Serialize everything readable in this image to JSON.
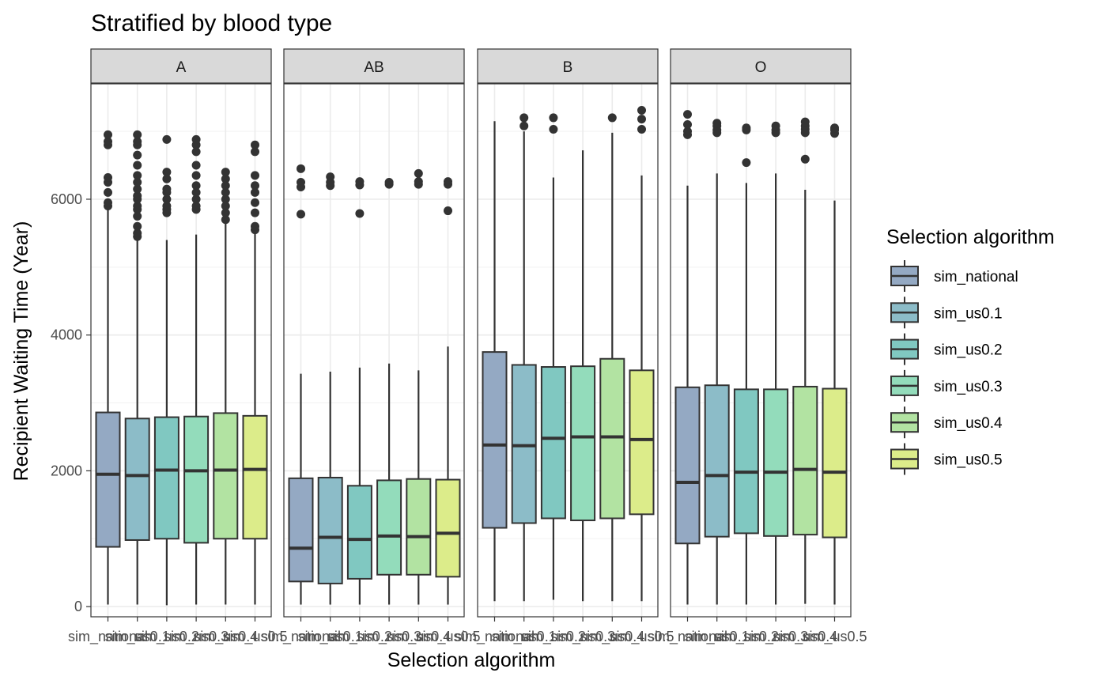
{
  "chart_data": {
    "type": "boxplot",
    "title": "Stratified by blood type",
    "xlabel": "Selection algorithm",
    "ylabel": "Recipient Waiting Time (Year)",
    "y_ticks": [
      0,
      2000,
      4000,
      6000
    ],
    "ylim": [
      -150,
      7700
    ],
    "grid": true,
    "legend_position": "right",
    "legend_title": "Selection algorithm",
    "categories": [
      "sim_national",
      "sim_us0.1",
      "sim_us0.2",
      "sim_us0.3",
      "sim_us0.4",
      "sim_us0.5"
    ],
    "colors": [
      "#94a9c3",
      "#8cbcc8",
      "#80c8c1",
      "#93dcbb",
      "#b2e3a2",
      "#dcec8a"
    ],
    "facets": [
      {
        "label": "A",
        "boxes": [
          {
            "lw": 30,
            "q1": 880,
            "median": 1950,
            "q3": 2860,
            "uw": 5850,
            "outliers": [
              5900,
              5950,
              6100,
              6250,
              6320,
              6800,
              6850,
              6950
            ]
          },
          {
            "lw": 30,
            "q1": 980,
            "median": 1930,
            "q3": 2770,
            "uw": 5400,
            "outliers": [
              5450,
              5500,
              5600,
              5750,
              5850,
              5900,
              6000,
              6050,
              6150,
              6250,
              6350,
              6500,
              6650,
              6800,
              6850,
              6950
            ]
          },
          {
            "lw": 20,
            "q1": 1000,
            "median": 2010,
            "q3": 2790,
            "uw": 5400,
            "outliers": [
              5800,
              5850,
              5900,
              6000,
              6100,
              6150,
              6300,
              6400,
              6880
            ]
          },
          {
            "lw": 30,
            "q1": 940,
            "median": 2000,
            "q3": 2800,
            "uw": 5480,
            "outliers": [
              5850,
              5900,
              6000,
              6100,
              6200,
              6350,
              6500,
              6700,
              6800,
              6880
            ]
          },
          {
            "lw": 30,
            "q1": 1000,
            "median": 2010,
            "q3": 2850,
            "uw": 5650,
            "outliers": [
              5700,
              5800,
              5900,
              6000,
              6100,
              6200,
              6300,
              6400
            ]
          },
          {
            "lw": 30,
            "q1": 1000,
            "median": 2020,
            "q3": 2810,
            "uw": 5500,
            "outliers": [
              5550,
              5600,
              5800,
              5950,
              6100,
              6200,
              6350,
              6700,
              6800
            ]
          }
        ]
      },
      {
        "label": "AB",
        "boxes": [
          {
            "lw": 30,
            "q1": 370,
            "median": 860,
            "q3": 1890,
            "uw": 3430,
            "outliers": [
              5780,
              6180,
              6250,
              6450
            ]
          },
          {
            "lw": 30,
            "q1": 340,
            "median": 1020,
            "q3": 1900,
            "uw": 3460,
            "outliers": [
              6200,
              6250,
              6330
            ]
          },
          {
            "lw": 30,
            "q1": 410,
            "median": 990,
            "q3": 1780,
            "uw": 3520,
            "outliers": [
              5790,
              6210,
              6260
            ]
          },
          {
            "lw": 30,
            "q1": 470,
            "median": 1040,
            "q3": 1860,
            "uw": 3580,
            "outliers": [
              6220,
              6250
            ]
          },
          {
            "lw": 30,
            "q1": 470,
            "median": 1030,
            "q3": 1880,
            "uw": 3480,
            "outliers": [
              6220,
              6260,
              6380
            ]
          },
          {
            "lw": 30,
            "q1": 440,
            "median": 1080,
            "q3": 1870,
            "uw": 3830,
            "outliers": [
              5830,
              6220,
              6260
            ]
          }
        ]
      },
      {
        "label": "B",
        "boxes": [
          {
            "lw": 80,
            "q1": 1160,
            "median": 2380,
            "q3": 3750,
            "uw": 7150,
            "outliers": []
          },
          {
            "lw": 80,
            "q1": 1230,
            "median": 2370,
            "q3": 3560,
            "uw": 7000,
            "outliers": [
              7080,
              7200
            ]
          },
          {
            "lw": 100,
            "q1": 1300,
            "median": 2480,
            "q3": 3530,
            "uw": 6320,
            "outliers": [
              7030,
              7200
            ]
          },
          {
            "lw": 80,
            "q1": 1270,
            "median": 2500,
            "q3": 3540,
            "uw": 6720,
            "outliers": []
          },
          {
            "lw": 80,
            "q1": 1300,
            "median": 2500,
            "q3": 3650,
            "uw": 6980,
            "outliers": [
              7200
            ]
          },
          {
            "lw": 80,
            "q1": 1360,
            "median": 2460,
            "q3": 3480,
            "uw": 6350,
            "outliers": [
              7030,
              7180,
              7310
            ]
          }
        ]
      },
      {
        "label": "O",
        "boxes": [
          {
            "lw": 30,
            "q1": 930,
            "median": 1830,
            "q3": 3230,
            "uw": 6200,
            "outliers": [
              6950,
              7000,
              7100,
              7250
            ]
          },
          {
            "lw": 30,
            "q1": 1030,
            "median": 1930,
            "q3": 3260,
            "uw": 6380,
            "outliers": [
              6980,
              7020,
              7080,
              7120
            ]
          },
          {
            "lw": 30,
            "q1": 1080,
            "median": 1980,
            "q3": 3200,
            "uw": 6240,
            "outliers": [
              6540,
              7020,
              7050
            ]
          },
          {
            "lw": 30,
            "q1": 1040,
            "median": 1980,
            "q3": 3200,
            "uw": 6380,
            "outliers": [
              6980,
              7020,
              7080
            ]
          },
          {
            "lw": 40,
            "q1": 1060,
            "median": 2020,
            "q3": 3240,
            "uw": 6140,
            "outliers": [
              6590,
              6980,
              7030,
              7080,
              7140
            ]
          },
          {
            "lw": 30,
            "q1": 1020,
            "median": 1980,
            "q3": 3210,
            "uw": 5980,
            "outliers": [
              6970,
              7020,
              7050
            ]
          }
        ]
      }
    ]
  }
}
